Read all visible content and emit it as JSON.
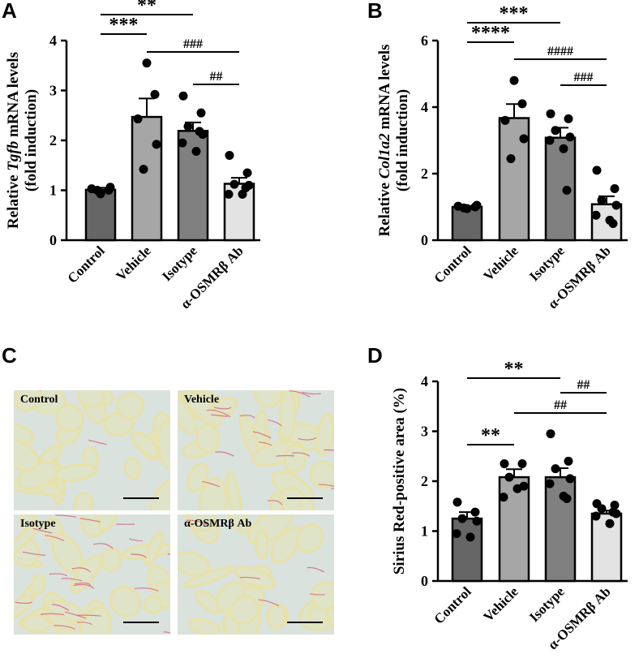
{
  "panels": {
    "A": "A",
    "B": "B",
    "C": "C",
    "D": "D"
  },
  "micrographs": [
    {
      "label": "Control"
    },
    {
      "label": "Vehicle"
    },
    {
      "label": "Isotype"
    },
    {
      "label": "α-OSMRβ Ab"
    }
  ],
  "colors": {
    "control": "#666666",
    "vehicle": "#a6a6a6",
    "isotype": "#808080",
    "treated": "#e3e3e3",
    "tissue_bg": "#d9e2dc",
    "collagen_yellow": "#e8e1a8",
    "collagen_red": "#d4607d"
  },
  "chart_data": [
    {
      "type": "bar",
      "panel": "A",
      "categories": [
        "Control",
        "Vehicle",
        "Isotype",
        "α-OSMRβ Ab"
      ],
      "values": [
        1.01,
        2.47,
        2.19,
        1.13
      ],
      "sem": [
        0.04,
        0.37,
        0.17,
        0.12
      ],
      "points": [
        [
          0.93,
          1.0,
          1.03,
          1.06,
          1.0
        ],
        [
          3.55,
          2.92,
          2.43,
          1.92,
          1.42
        ],
        [
          2.89,
          2.55,
          2.28,
          2.12,
          1.95,
          1.78,
          2.18
        ],
        [
          1.7,
          1.35,
          1.12,
          1.1,
          0.92,
          0.92,
          1.05
        ]
      ],
      "ylabel_pre": "Relative ",
      "ylabel_gene": "Tgfb",
      "ylabel_post": " mRNA levels",
      "ylabel2": "(fold induction)",
      "ylim": [
        0,
        4
      ],
      "yticks": [
        "0",
        "1",
        "2",
        "3",
        "4"
      ],
      "significance": [
        {
          "from": 0,
          "to": 2,
          "label": "**"
        },
        {
          "from": 0,
          "to": 1,
          "label": "***"
        },
        {
          "from": 1,
          "to": 3,
          "label": "###"
        },
        {
          "from": 2,
          "to": 3,
          "label": "##"
        }
      ]
    },
    {
      "type": "bar",
      "panel": "B",
      "categories": [
        "Control",
        "Vehicle",
        "Isotype",
        "α-OSMRβ Ab"
      ],
      "values": [
        1.0,
        3.67,
        3.08,
        1.08
      ],
      "sem": [
        0.03,
        0.42,
        0.3,
        0.24
      ],
      "points": [
        [
          0.95,
          1.0,
          1.02,
          1.05,
          0.97
        ],
        [
          4.8,
          4.1,
          3.6,
          3.05,
          2.45
        ],
        [
          3.8,
          3.65,
          3.3,
          3.1,
          3.0,
          2.75,
          1.5
        ],
        [
          2.1,
          1.55,
          1.2,
          1.05,
          0.75,
          0.6,
          0.5
        ]
      ],
      "ylabel_pre": "Relative ",
      "ylabel_gene": "Col1a2",
      "ylabel_post": " mRNA levels",
      "ylabel2": "(fold induction)",
      "ylim": [
        0,
        6
      ],
      "yticks": [
        "0",
        "2",
        "4",
        "6"
      ],
      "significance": [
        {
          "from": 0,
          "to": 2,
          "label": "***"
        },
        {
          "from": 0,
          "to": 1,
          "label": "****"
        },
        {
          "from": 1,
          "to": 3,
          "label": "####"
        },
        {
          "from": 2,
          "to": 3,
          "label": "###"
        }
      ]
    },
    {
      "type": "bar",
      "panel": "D",
      "categories": [
        "Control",
        "Vehicle",
        "Isotype",
        "α-OSMRβ Ab"
      ],
      "values": [
        1.25,
        2.08,
        2.08,
        1.35
      ],
      "sem": [
        0.13,
        0.16,
        0.18,
        0.06
      ],
      "points": [
        [
          1.58,
          1.38,
          1.25,
          1.2,
          0.95,
          0.88
        ],
        [
          2.35,
          2.35,
          2.08,
          1.9,
          1.68,
          1.85
        ],
        [
          2.95,
          2.4,
          2.25,
          2.05,
          1.95,
          1.7,
          1.65
        ],
        [
          1.55,
          1.52,
          1.45,
          1.35,
          1.3,
          1.15,
          1.38
        ]
      ],
      "ylabel_pre": "Sirius Red-positive area (%)",
      "ylabel_gene": "",
      "ylabel_post": "",
      "ylabel2": "",
      "ylim": [
        0,
        4
      ],
      "yticks": [
        "0",
        "1",
        "2",
        "3",
        "4"
      ],
      "significance": [
        {
          "from": 0,
          "to": 2,
          "label": "**"
        },
        {
          "from": 2,
          "to": 3,
          "label": "##"
        },
        {
          "from": 1,
          "to": 3,
          "label": "##"
        },
        {
          "from": 0,
          "to": 1,
          "label": "**"
        }
      ]
    }
  ]
}
